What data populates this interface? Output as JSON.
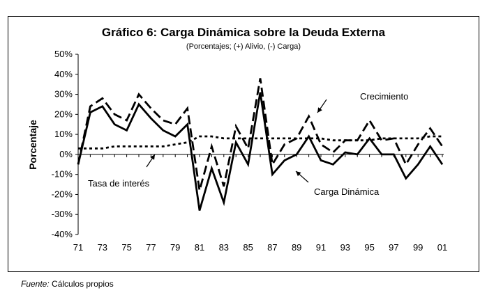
{
  "chart_data": {
    "type": "line",
    "title": "Gráfico 6: Carga Dinámica sobre la Deuda Externa",
    "subtitle": "(Porcentajes; (+) Alivio, (-) Carga)",
    "ylabel": "Porcentaje",
    "xlabel": "",
    "x": [
      71,
      72,
      73,
      74,
      75,
      76,
      77,
      78,
      79,
      80,
      81,
      82,
      83,
      84,
      85,
      86,
      87,
      88,
      89,
      90,
      91,
      92,
      93,
      94,
      95,
      96,
      97,
      98,
      99,
      100,
      101
    ],
    "x_tick_labels": [
      "71",
      "73",
      "75",
      "77",
      "79",
      "81",
      "83",
      "85",
      "87",
      "89",
      "91",
      "93",
      "95",
      "97",
      "99",
      "01"
    ],
    "y_tick_labels": [
      "50%",
      "40%",
      "30%",
      "20%",
      "10%",
      "0%",
      "-10%",
      "-20%",
      "-30%",
      "-40%"
    ],
    "ylim": [
      -40,
      50
    ],
    "series": [
      {
        "name": "Carga Dinámica",
        "style": "solid",
        "values": [
          -5,
          21,
          24,
          15,
          12,
          25,
          18,
          12,
          9,
          15,
          -28,
          -7,
          -24,
          6,
          -5,
          31,
          -10,
          -3,
          0,
          9,
          -3,
          -5,
          1,
          0,
          8,
          0,
          0,
          -12,
          -5,
          4,
          -5
        ]
      },
      {
        "name": "Crecimiento",
        "style": "long-dash",
        "values": [
          -5,
          24,
          28,
          20,
          17,
          30,
          23,
          17,
          15,
          23,
          -18,
          4,
          -16,
          14,
          3,
          38,
          -5,
          5,
          8,
          19,
          5,
          1,
          7,
          7,
          17,
          7,
          8,
          -5,
          5,
          13,
          4
        ]
      },
      {
        "name": "Tasa de interés",
        "style": "short-dash",
        "values": [
          3,
          3,
          3,
          4,
          4,
          4,
          4,
          4,
          5,
          6,
          9,
          9,
          8,
          8,
          8,
          8,
          8,
          8,
          8,
          8,
          8,
          7,
          7,
          7,
          7,
          8,
          8,
          8,
          8,
          9,
          9
        ]
      }
    ],
    "annotations": [
      {
        "label": "Crecimiento"
      },
      {
        "label": "Tasa de interés"
      },
      {
        "label": "Carga  Dinámica"
      }
    ]
  },
  "source": {
    "label": "Fuente:",
    "text": "Cálculos propios"
  },
  "colors": {
    "line": "#000000",
    "background": "#ffffff"
  }
}
